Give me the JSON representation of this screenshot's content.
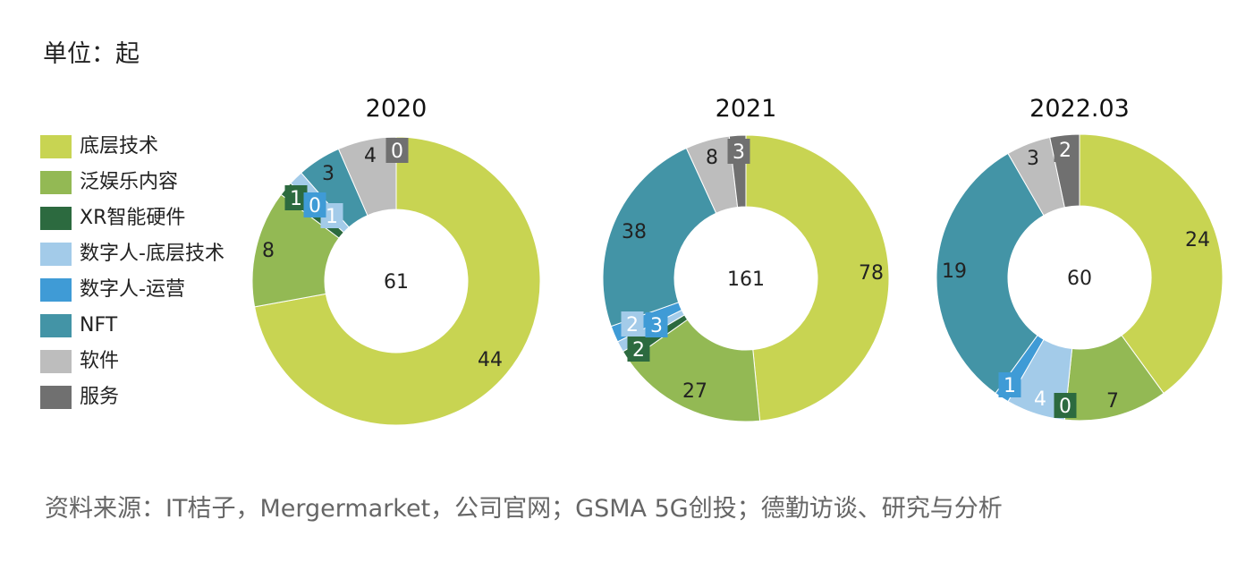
{
  "unit_label": "单位：起",
  "source": "资料来源：IT桔子，Mergermarket，公司官网；GSMA 5G创投；德勤访谈、研究与分析",
  "legend": [
    {
      "label": "底层技术",
      "color": "#c8d452"
    },
    {
      "label": "泛娱乐内容",
      "color": "#93b954"
    },
    {
      "label": "XR智能硬件",
      "color": "#2c6a3f"
    },
    {
      "label": "数字人-底层技术",
      "color": "#a3cbe9"
    },
    {
      "label": "数字人-运营",
      "color": "#3f9bd6"
    },
    {
      "label": "NFT",
      "color": "#4394a6"
    },
    {
      "label": "软件",
      "color": "#bdbdbd"
    },
    {
      "label": "服务",
      "color": "#707070"
    }
  ],
  "chart_data": [
    {
      "type": "pie",
      "title": "2020",
      "total": "61",
      "categories": [
        "底层技术",
        "泛娱乐内容",
        "XR智能硬件",
        "数字人-底层技术",
        "数字人-运营",
        "NFT",
        "软件",
        "服务"
      ],
      "values": [
        44,
        8,
        1,
        1,
        0,
        3,
        4,
        0
      ]
    },
    {
      "type": "pie",
      "title": "2021",
      "total": "161",
      "categories": [
        "底层技术",
        "泛娱乐内容",
        "XR智能硬件",
        "数字人-底层技术",
        "数字人-运营",
        "NFT",
        "软件",
        "服务"
      ],
      "values": [
        78,
        27,
        2,
        2,
        3,
        38,
        8,
        3
      ]
    },
    {
      "type": "pie",
      "title": "2022.03",
      "total": "60",
      "categories": [
        "底层技术",
        "泛娱乐内容",
        "XR智能硬件",
        "数字人-底层技术",
        "数字人-运营",
        "NFT",
        "软件",
        "服务"
      ],
      "values": [
        24,
        7,
        0,
        4,
        1,
        19,
        3,
        2
      ]
    }
  ]
}
